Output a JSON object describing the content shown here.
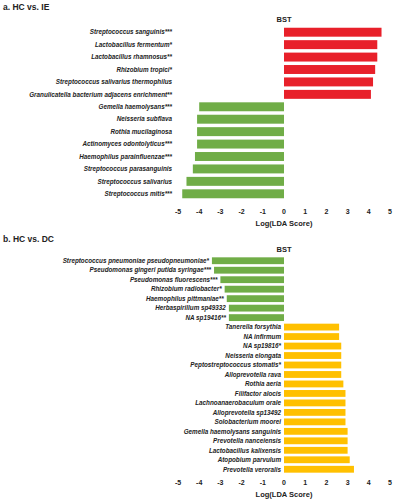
{
  "chart_data": [
    {
      "type": "bar",
      "orientation": "horizontal",
      "title": "a.  HC vs. IE",
      "annotation": "BST",
      "x_label": "Log(LDA Score)",
      "categories": [
        "Streptococcus sanguinis***",
        "Lactobacillus fermentum*",
        "Lactobacillus rhamnosus**",
        "Rhizobium tropici*",
        "Streptococcus salivarius thermophilus",
        "Granulicatella bacterium adjacens enrichment**",
        "Gemella haemolysans***",
        "Neisseria subflava",
        "Rothia mucilaginosa",
        "Actinomyces odontolyticus***",
        "Haemophilus parainfluenzae***",
        "Streptococcus parasanguinis",
        "Streptococcus salivarius",
        "Streptococcus mitis***"
      ],
      "values": [
        4.6,
        4.4,
        4.4,
        4.3,
        4.2,
        4.1,
        -4.0,
        -4.1,
        -4.1,
        -4.1,
        -4.2,
        -4.3,
        -4.6,
        -4.8
      ],
      "colors": [
        "#e8202a",
        "#e8202a",
        "#e8202a",
        "#e8202a",
        "#e8202a",
        "#e8202a",
        "#70ad47",
        "#70ad47",
        "#70ad47",
        "#70ad47",
        "#70ad47",
        "#70ad47",
        "#70ad47",
        "#70ad47"
      ],
      "xlim": [
        -5,
        5
      ],
      "xticks": [
        -5,
        -4,
        -3,
        -2,
        -1,
        0,
        1,
        2,
        3,
        4,
        5
      ]
    },
    {
      "type": "bar",
      "orientation": "horizontal",
      "title": "b.  HC vs. DC",
      "annotation": "BST",
      "x_label": "Log(LDA Score)",
      "categories": [
        "Streptococcus pneumoniae pseudopneumoniae*",
        "Pseudomonas gingeri putida syringae***",
        "Pseudomonas fluorescens***",
        "Rhizobium radiobacter*",
        "Haemophilus pittmaniae**",
        "Herbaspirillum sp49332",
        "NA sp19416**",
        "Tanerella forsythia",
        "NA infirmum",
        "NA sp19816*",
        "Neisseria elongata",
        "Peptostreptococcus stomatis*",
        "Alloprevotella rava",
        "Rothia aeria",
        "Filifactor alocis",
        "Lachnoanaerobaculum orale",
        "Alloprevotella sp13492",
        "Solobacterium moorei",
        "Gemella haemolysans sanguinis",
        "Prevotella nanceiensis",
        "Lactobacillus kalixensis",
        "Atopobium parvulum",
        "Prevotella veroralis"
      ],
      "values": [
        -3.4,
        -3.3,
        -3.0,
        -2.8,
        -2.7,
        -2.6,
        -2.6,
        2.6,
        2.6,
        2.7,
        2.7,
        2.7,
        2.7,
        2.8,
        2.9,
        2.9,
        2.9,
        2.9,
        3.0,
        3.0,
        3.0,
        3.1,
        3.3
      ],
      "colors": [
        "#70ad47",
        "#70ad47",
        "#70ad47",
        "#70ad47",
        "#70ad47",
        "#70ad47",
        "#70ad47",
        "#ffc000",
        "#ffc000",
        "#ffc000",
        "#ffc000",
        "#ffc000",
        "#ffc000",
        "#ffc000",
        "#ffc000",
        "#ffc000",
        "#ffc000",
        "#ffc000",
        "#ffc000",
        "#ffc000",
        "#ffc000",
        "#ffc000",
        "#ffc000"
      ],
      "xlim": [
        -5,
        5
      ],
      "xticks": [
        -5,
        -4,
        -3,
        -2,
        -1,
        0,
        1,
        2,
        3,
        4,
        5
      ]
    }
  ]
}
